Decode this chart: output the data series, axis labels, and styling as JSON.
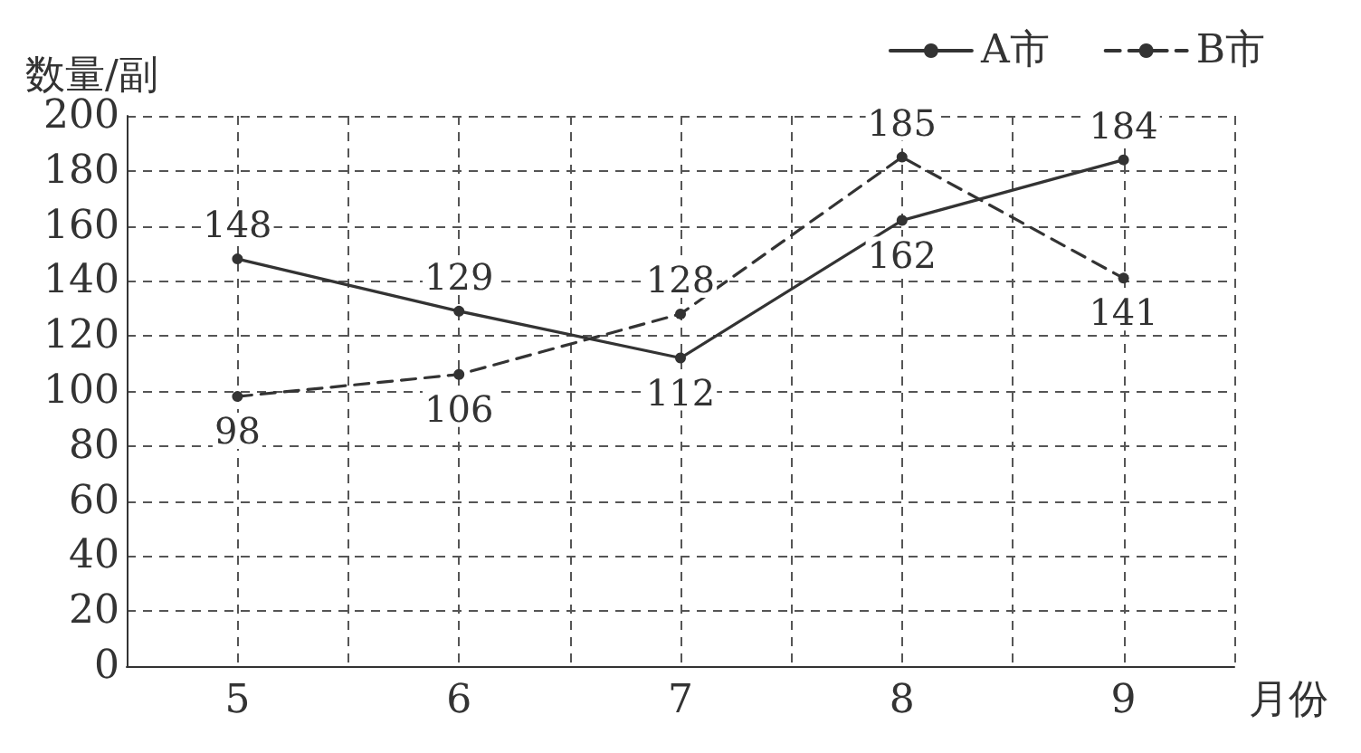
{
  "chart_data": {
    "type": "line",
    "xlabel": "月份",
    "ylabel": "数量/副",
    "x": [
      5,
      6,
      7,
      8,
      9
    ],
    "xlim": [
      4.5,
      9.5
    ],
    "xticks": [
      {
        "value": 4.5,
        "label": null
      },
      5,
      {
        "value": 5.5,
        "label": null
      },
      6,
      {
        "value": 6.5,
        "label": null
      },
      7,
      {
        "value": 7.5,
        "label": null
      },
      8,
      {
        "value": 8.5,
        "label": null
      },
      9,
      {
        "value": 9.5,
        "label": null
      }
    ],
    "ylim": [
      0,
      200
    ],
    "yticks": [
      0,
      20,
      40,
      60,
      80,
      100,
      120,
      140,
      160,
      180,
      200
    ],
    "series": [
      {
        "name": "A市",
        "color": "#333333",
        "values": [
          148,
          129,
          112,
          162,
          184
        ],
        "line_style": "solid"
      },
      {
        "name": "B市",
        "color": "#333333",
        "values": [
          98,
          106,
          128,
          185,
          141
        ],
        "line_style": "dashed"
      }
    ],
    "data_labels": true,
    "grid": true,
    "legend": "top right",
    "marker": "circle"
  }
}
